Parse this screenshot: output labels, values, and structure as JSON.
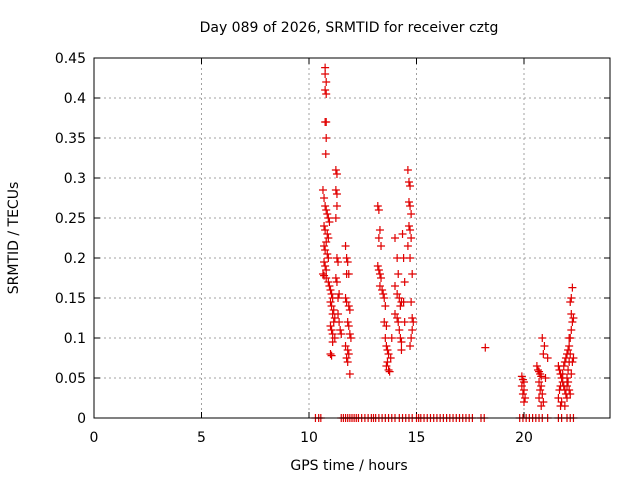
{
  "chart_data": {
    "type": "scatter",
    "title": "Day 089 of 2026, SRMTID for receiver cztg",
    "xlabel": "GPS time / hours",
    "ylabel": "SRMTID / TECUs",
    "xlim": [
      0,
      24
    ],
    "ylim": [
      0,
      0.45
    ],
    "xticks": [
      0,
      5,
      10,
      15,
      20
    ],
    "yticks": [
      0,
      0.05,
      0.1,
      0.15,
      0.2,
      0.25,
      0.3,
      0.35,
      0.4,
      0.45
    ],
    "xtick_labels": [
      "0",
      "5",
      "10",
      "15",
      "20"
    ],
    "ytick_labels": [
      "0",
      "0.05",
      "0.1",
      "0.15",
      "0.2",
      "0.25",
      "0.3",
      "0.35",
      "0.4",
      "0.45"
    ],
    "grid": true,
    "marker": "+",
    "color": "#e00000",
    "series": [
      {
        "name": "SRMTID",
        "points": [
          [
            10.3,
            0
          ],
          [
            10.45,
            0
          ],
          [
            10.55,
            0
          ],
          [
            11.5,
            0
          ],
          [
            11.6,
            0
          ],
          [
            11.7,
            0
          ],
          [
            11.8,
            0
          ],
          [
            11.9,
            0
          ],
          [
            12.0,
            0
          ],
          [
            12.1,
            0
          ],
          [
            12.2,
            0
          ],
          [
            12.3,
            0
          ],
          [
            12.45,
            0
          ],
          [
            12.6,
            0
          ],
          [
            12.75,
            0
          ],
          [
            12.9,
            0
          ],
          [
            13.0,
            0
          ],
          [
            13.1,
            0
          ],
          [
            13.25,
            0
          ],
          [
            13.4,
            0
          ],
          [
            13.55,
            0
          ],
          [
            13.7,
            0
          ],
          [
            13.85,
            0
          ],
          [
            14.0,
            0
          ],
          [
            14.2,
            0
          ],
          [
            14.35,
            0
          ],
          [
            14.5,
            0
          ],
          [
            14.65,
            0
          ],
          [
            14.8,
            0
          ],
          [
            15.0,
            0
          ],
          [
            15.1,
            0
          ],
          [
            15.2,
            0
          ],
          [
            15.35,
            0
          ],
          [
            15.5,
            0
          ],
          [
            15.65,
            0
          ],
          [
            15.8,
            0
          ],
          [
            15.95,
            0
          ],
          [
            16.1,
            0
          ],
          [
            16.25,
            0
          ],
          [
            16.4,
            0
          ],
          [
            16.55,
            0
          ],
          [
            16.7,
            0
          ],
          [
            16.85,
            0
          ],
          [
            17.0,
            0
          ],
          [
            17.15,
            0
          ],
          [
            17.3,
            0
          ],
          [
            17.45,
            0
          ],
          [
            17.6,
            0
          ],
          [
            18.0,
            0
          ],
          [
            18.15,
            0
          ],
          [
            19.8,
            0
          ],
          [
            19.95,
            0
          ],
          [
            20.1,
            0
          ],
          [
            20.25,
            0
          ],
          [
            20.4,
            0
          ],
          [
            20.55,
            0
          ],
          [
            20.7,
            0
          ],
          [
            20.85,
            0
          ],
          [
            21.1,
            0
          ],
          [
            21.6,
            0
          ],
          [
            21.75,
            0
          ],
          [
            22.0,
            0
          ],
          [
            22.15,
            0
          ],
          [
            22.3,
            0
          ],
          [
            10.75,
            0.438
          ],
          [
            10.75,
            0.43
          ],
          [
            10.8,
            0.42
          ],
          [
            10.75,
            0.41
          ],
          [
            10.8,
            0.405
          ],
          [
            10.75,
            0.37
          ],
          [
            10.8,
            0.37
          ],
          [
            10.8,
            0.35
          ],
          [
            10.78,
            0.33
          ],
          [
            10.65,
            0.285
          ],
          [
            10.7,
            0.275
          ],
          [
            10.75,
            0.265
          ],
          [
            10.8,
            0.26
          ],
          [
            10.85,
            0.255
          ],
          [
            10.9,
            0.25
          ],
          [
            10.95,
            0.245
          ],
          [
            10.7,
            0.24
          ],
          [
            10.75,
            0.235
          ],
          [
            10.85,
            0.23
          ],
          [
            10.9,
            0.225
          ],
          [
            10.8,
            0.22
          ],
          [
            10.7,
            0.215
          ],
          [
            10.75,
            0.21
          ],
          [
            10.85,
            0.205
          ],
          [
            10.9,
            0.2
          ],
          [
            10.7,
            0.195
          ],
          [
            10.75,
            0.19
          ],
          [
            10.8,
            0.185
          ],
          [
            10.65,
            0.18
          ],
          [
            10.7,
            0.178
          ],
          [
            10.8,
            0.175
          ],
          [
            10.9,
            0.17
          ],
          [
            10.95,
            0.165
          ],
          [
            11.0,
            0.16
          ],
          [
            11.05,
            0.155
          ],
          [
            11.1,
            0.15
          ],
          [
            11.0,
            0.145
          ],
          [
            11.05,
            0.14
          ],
          [
            11.15,
            0.135
          ],
          [
            11.1,
            0.13
          ],
          [
            11.2,
            0.125
          ],
          [
            11.15,
            0.12
          ],
          [
            11.0,
            0.115
          ],
          [
            11.05,
            0.11
          ],
          [
            11.1,
            0.105
          ],
          [
            11.2,
            0.1
          ],
          [
            11.1,
            0.095
          ],
          [
            11.0,
            0.08
          ],
          [
            11.05,
            0.078
          ],
          [
            11.25,
            0.31
          ],
          [
            11.3,
            0.305
          ],
          [
            11.25,
            0.285
          ],
          [
            11.3,
            0.28
          ],
          [
            11.3,
            0.265
          ],
          [
            11.25,
            0.25
          ],
          [
            11.3,
            0.2
          ],
          [
            11.35,
            0.195
          ],
          [
            11.25,
            0.175
          ],
          [
            11.3,
            0.17
          ],
          [
            11.4,
            0.155
          ],
          [
            11.35,
            0.15
          ],
          [
            11.35,
            0.13
          ],
          [
            11.4,
            0.12
          ],
          [
            11.45,
            0.11
          ],
          [
            11.5,
            0.105
          ],
          [
            11.7,
            0.215
          ],
          [
            11.75,
            0.2
          ],
          [
            11.8,
            0.195
          ],
          [
            11.75,
            0.18
          ],
          [
            11.85,
            0.18
          ],
          [
            11.7,
            0.15
          ],
          [
            11.75,
            0.145
          ],
          [
            11.85,
            0.14
          ],
          [
            11.9,
            0.135
          ],
          [
            11.8,
            0.12
          ],
          [
            11.85,
            0.115
          ],
          [
            11.9,
            0.105
          ],
          [
            11.95,
            0.1
          ],
          [
            11.7,
            0.09
          ],
          [
            11.8,
            0.085
          ],
          [
            11.85,
            0.08
          ],
          [
            11.75,
            0.075
          ],
          [
            11.8,
            0.07
          ],
          [
            11.9,
            0.055
          ],
          [
            13.2,
            0.265
          ],
          [
            13.25,
            0.26
          ],
          [
            13.3,
            0.235
          ],
          [
            13.25,
            0.225
          ],
          [
            13.35,
            0.215
          ],
          [
            13.2,
            0.19
          ],
          [
            13.25,
            0.185
          ],
          [
            13.3,
            0.18
          ],
          [
            13.35,
            0.175
          ],
          [
            13.3,
            0.165
          ],
          [
            13.4,
            0.16
          ],
          [
            13.45,
            0.155
          ],
          [
            13.5,
            0.15
          ],
          [
            13.55,
            0.14
          ],
          [
            13.5,
            0.12
          ],
          [
            13.6,
            0.115
          ],
          [
            13.55,
            0.1
          ],
          [
            13.6,
            0.09
          ],
          [
            13.65,
            0.085
          ],
          [
            13.7,
            0.08
          ],
          [
            13.65,
            0.07
          ],
          [
            13.6,
            0.065
          ],
          [
            13.7,
            0.06
          ],
          [
            13.75,
            0.058
          ],
          [
            13.8,
            0.075
          ],
          [
            13.85,
            0.1
          ],
          [
            14.0,
            0.225
          ],
          [
            14.1,
            0.2
          ],
          [
            14.15,
            0.18
          ],
          [
            14.0,
            0.165
          ],
          [
            14.1,
            0.155
          ],
          [
            14.2,
            0.15
          ],
          [
            14.25,
            0.14
          ],
          [
            14.3,
            0.145
          ],
          [
            14.0,
            0.13
          ],
          [
            14.1,
            0.125
          ],
          [
            14.15,
            0.12
          ],
          [
            14.2,
            0.11
          ],
          [
            14.25,
            0.1
          ],
          [
            14.3,
            0.095
          ],
          [
            14.35,
            0.23
          ],
          [
            14.4,
            0.2
          ],
          [
            14.45,
            0.17
          ],
          [
            14.4,
            0.145
          ],
          [
            14.45,
            0.12
          ],
          [
            14.3,
            0.085
          ],
          [
            14.6,
            0.31
          ],
          [
            14.65,
            0.295
          ],
          [
            14.7,
            0.29
          ],
          [
            14.65,
            0.27
          ],
          [
            14.7,
            0.265
          ],
          [
            14.75,
            0.255
          ],
          [
            14.65,
            0.24
          ],
          [
            14.7,
            0.235
          ],
          [
            14.75,
            0.225
          ],
          [
            14.6,
            0.215
          ],
          [
            14.7,
            0.2
          ],
          [
            14.8,
            0.18
          ],
          [
            14.75,
            0.145
          ],
          [
            14.8,
            0.125
          ],
          [
            14.85,
            0.12
          ],
          [
            14.8,
            0.11
          ],
          [
            14.75,
            0.1
          ],
          [
            14.7,
            0.09
          ],
          [
            18.2,
            0.088
          ],
          [
            19.9,
            0.052
          ],
          [
            19.95,
            0.048
          ],
          [
            20.0,
            0.045
          ],
          [
            19.9,
            0.04
          ],
          [
            20.0,
            0.035
          ],
          [
            19.95,
            0.03
          ],
          [
            20.05,
            0.025
          ],
          [
            20.0,
            0.02
          ],
          [
            20.6,
            0.065
          ],
          [
            20.65,
            0.06
          ],
          [
            20.7,
            0.058
          ],
          [
            20.75,
            0.055
          ],
          [
            20.8,
            0.052
          ],
          [
            20.85,
            0.1
          ],
          [
            20.9,
            0.08
          ],
          [
            20.95,
            0.09
          ],
          [
            21.0,
            0.05
          ],
          [
            20.7,
            0.045
          ],
          [
            20.8,
            0.04
          ],
          [
            20.75,
            0.035
          ],
          [
            20.85,
            0.03
          ],
          [
            20.7,
            0.025
          ],
          [
            20.9,
            0.02
          ],
          [
            20.8,
            0.015
          ],
          [
            21.1,
            0.075
          ],
          [
            21.6,
            0.065
          ],
          [
            21.65,
            0.06
          ],
          [
            21.7,
            0.055
          ],
          [
            21.75,
            0.05
          ],
          [
            21.8,
            0.045
          ],
          [
            21.85,
            0.04
          ],
          [
            21.9,
            0.035
          ],
          [
            21.95,
            0.03
          ],
          [
            22.0,
            0.025
          ],
          [
            21.6,
            0.025
          ],
          [
            21.65,
            0.035
          ],
          [
            21.7,
            0.04
          ],
          [
            21.8,
            0.055
          ],
          [
            21.85,
            0.065
          ],
          [
            21.9,
            0.07
          ],
          [
            21.95,
            0.075
          ],
          [
            22.0,
            0.08
          ],
          [
            22.05,
            0.085
          ],
          [
            22.1,
            0.09
          ],
          [
            22.15,
            0.1
          ],
          [
            22.0,
            0.05
          ],
          [
            22.05,
            0.06
          ],
          [
            22.1,
            0.07
          ],
          [
            22.15,
            0.08
          ],
          [
            22.2,
            0.11
          ],
          [
            22.25,
            0.12
          ],
          [
            22.3,
            0.125
          ],
          [
            22.2,
            0.13
          ],
          [
            22.15,
            0.145
          ],
          [
            22.2,
            0.15
          ],
          [
            22.25,
            0.163
          ],
          [
            22.1,
            0.1
          ],
          [
            22.05,
            0.045
          ],
          [
            22.0,
            0.04
          ],
          [
            22.1,
            0.035
          ],
          [
            22.15,
            0.03
          ],
          [
            22.2,
            0.055
          ],
          [
            22.25,
            0.07
          ],
          [
            22.3,
            0.075
          ],
          [
            21.7,
            0.015
          ],
          [
            21.75,
            0.02
          ],
          [
            21.9,
            0.015
          ]
        ]
      }
    ]
  }
}
